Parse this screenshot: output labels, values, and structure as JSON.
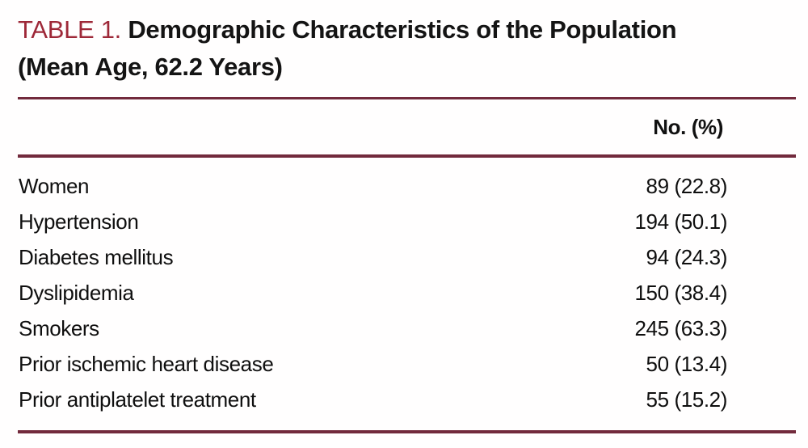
{
  "title": {
    "label": "TABLE 1.",
    "text": "Demographic Characteristics of the Population (Mean Age, 62.2 Years)"
  },
  "table": {
    "value_column_header": "No. (%)",
    "rows": [
      {
        "label": "Women",
        "value": "89 (22.8)"
      },
      {
        "label": "Hypertension",
        "value": "194 (50.1)"
      },
      {
        "label": "Diabetes mellitus",
        "value": "94 (24.3)"
      },
      {
        "label": "Dyslipidemia",
        "value": "150 (38.4)"
      },
      {
        "label": "Smokers",
        "value": "245 (63.3)"
      },
      {
        "label": "Prior ischemic heart disease",
        "value": "50 (13.4)"
      },
      {
        "label": "Prior antiplatelet treatment",
        "value": "55 (15.2)"
      }
    ]
  },
  "colors": {
    "accent_text": "#9E2838",
    "rule": "#722A3C",
    "body_text": "#0F0F0F"
  }
}
